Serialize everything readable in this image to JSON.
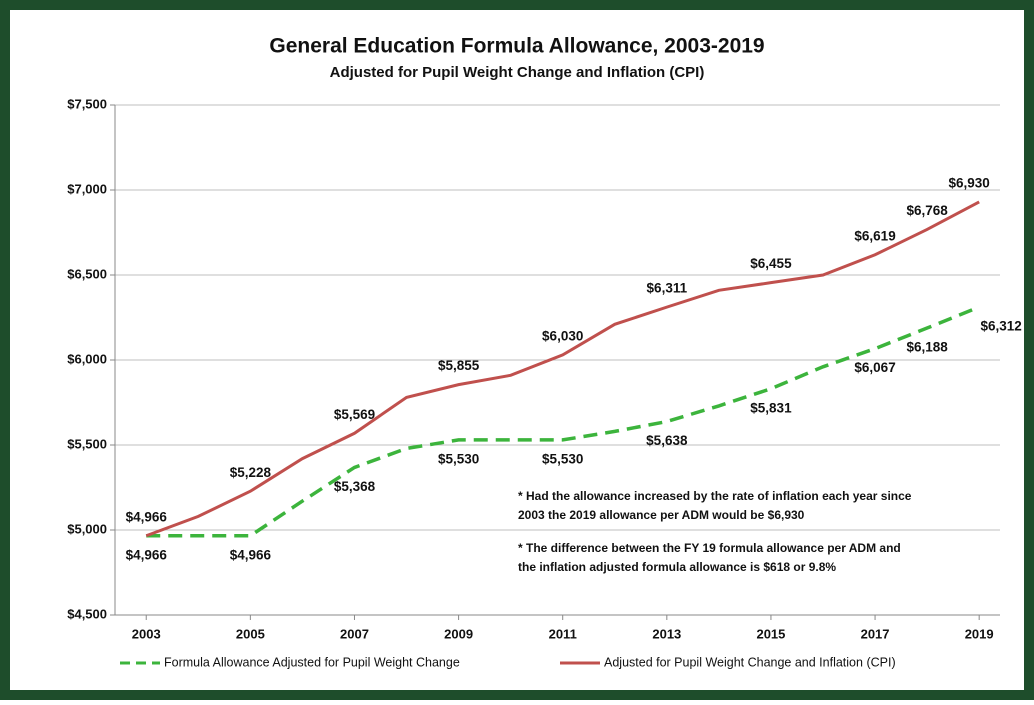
{
  "chart_data": {
    "type": "line",
    "title": "General Education Formula Allowance, 2003-2019",
    "subtitle": "Adjusted for Pupil Weight Change and Inflation (CPI)",
    "x": [
      2003,
      2004,
      2005,
      2006,
      2007,
      2008,
      2009,
      2010,
      2011,
      2012,
      2013,
      2014,
      2015,
      2016,
      2017,
      2018,
      2019
    ],
    "xlim": [
      2002.4,
      2019.4
    ],
    "xticks": [
      2003,
      2005,
      2007,
      2009,
      2011,
      2013,
      2015,
      2017,
      2019
    ],
    "ylim": [
      4500,
      7500
    ],
    "yticks": [
      {
        "value": 4500,
        "label": "$4,500"
      },
      {
        "value": 5000,
        "label": "$5,000"
      },
      {
        "value": 5500,
        "label": "$5,500"
      },
      {
        "value": 6000,
        "label": "$6,000"
      },
      {
        "value": 6500,
        "label": "$6,500"
      },
      {
        "value": 7000,
        "label": "$7,000"
      },
      {
        "value": 7500,
        "label": "$7,500"
      }
    ],
    "grid": true,
    "legend": "bottom",
    "series": [
      {
        "name": "Formula Allowance Adjusted for Pupil Weight Change",
        "color": "#3cb43c",
        "dashed": true,
        "values": [
          4966,
          4966,
          4966,
          5170,
          5368,
          5480,
          5530,
          5530,
          5530,
          5580,
          5638,
          5730,
          5831,
          5960,
          6067,
          6188,
          6312
        ],
        "value_labels": [
          "$4,966",
          null,
          "$4,966",
          null,
          "$5,368",
          null,
          "$5,530",
          null,
          "$5,530",
          null,
          "$5,638",
          null,
          "$5,831",
          null,
          "$6,067",
          "$6,188",
          "$6,312"
        ]
      },
      {
        "name": "Adjusted for Pupil Weight Change and Inflation (CPI)",
        "color": "#c0504d",
        "dashed": false,
        "values": [
          4966,
          5080,
          5228,
          5420,
          5569,
          5780,
          5855,
          5910,
          6030,
          6210,
          6311,
          6410,
          6455,
          6500,
          6619,
          6768,
          6930
        ],
        "value_labels": [
          "$4,966",
          null,
          "$5,228",
          null,
          "$5,569",
          null,
          "$5,855",
          null,
          "$6,030",
          null,
          "$6,311",
          null,
          "$6,455",
          null,
          "$6,619",
          "$6,768",
          "$6,930"
        ]
      }
    ],
    "annotations": [
      [
        "* Had the allowance increased by the rate of inflation each year since",
        "2003 the 2019 allowance per ADM would be $6,930"
      ],
      [
        "* The difference between the FY 19 formula allowance per ADM and",
        "the inflation adjusted formula allowance is $618 or 9.8%"
      ]
    ]
  }
}
